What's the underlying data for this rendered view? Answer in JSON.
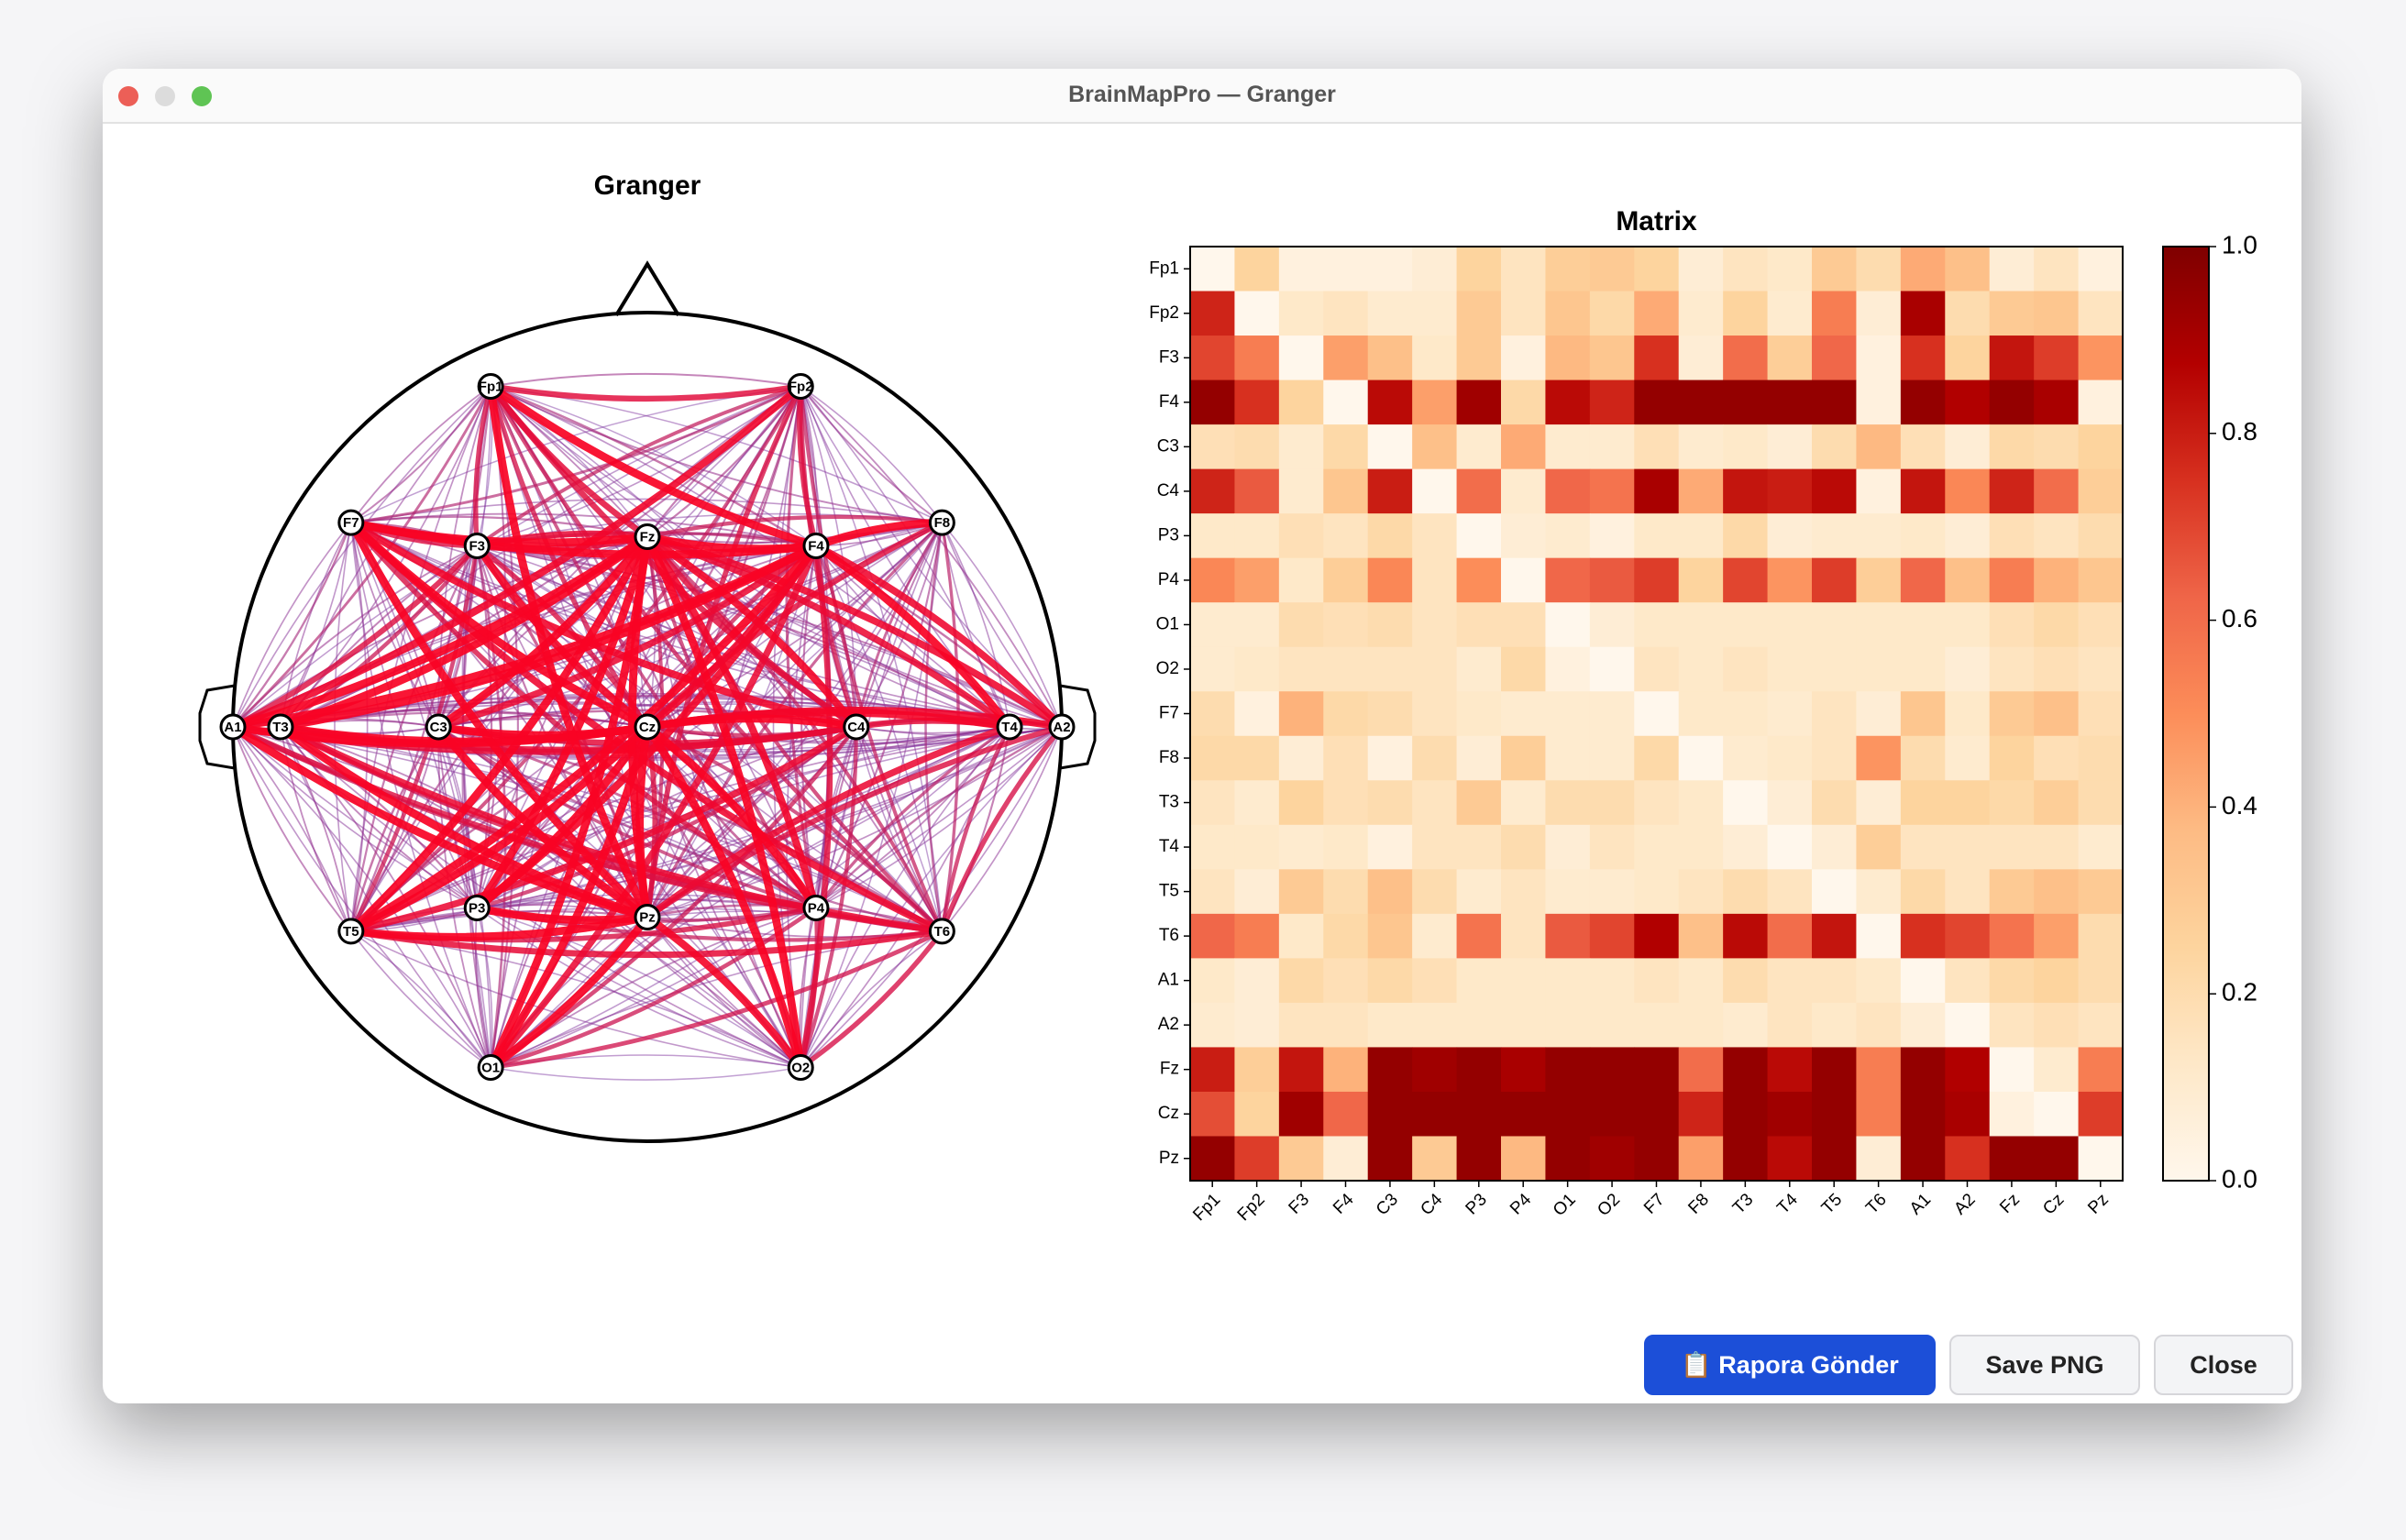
{
  "window_title": "BrainMapPro — Granger",
  "chart_data": [
    {
      "type": "network",
      "title": "Granger",
      "nodes": [
        "Fp1",
        "Fp2",
        "F3",
        "F4",
        "C3",
        "C4",
        "P3",
        "P4",
        "O1",
        "O2",
        "F7",
        "F8",
        "T3",
        "T4",
        "T5",
        "T6",
        "A1",
        "A2",
        "Fz",
        "Cz",
        "Pz"
      ]
    },
    {
      "type": "heatmap",
      "title": "Matrix",
      "colormap": "OrRd",
      "categories": [
        "Fp1",
        "Fp2",
        "F3",
        "F4",
        "C3",
        "C4",
        "P3",
        "P4",
        "O1",
        "O2",
        "F7",
        "F8",
        "T3",
        "T4",
        "T5",
        "T6",
        "A1",
        "A2",
        "Fz",
        "Cz",
        "Pz"
      ],
      "values": [
        [
          0,
          0.25,
          0.05,
          0.05,
          0.05,
          0.08,
          0.25,
          0.15,
          0.28,
          0.3,
          0.25,
          0.08,
          0.15,
          0.12,
          0.3,
          0.2,
          0.42,
          0.35,
          0.08,
          0.15,
          0.05
        ],
        [
          0.78,
          0,
          0.12,
          0.15,
          0.1,
          0.1,
          0.3,
          0.15,
          0.32,
          0.22,
          0.42,
          0.1,
          0.25,
          0.1,
          0.55,
          0.08,
          0.9,
          0.2,
          0.3,
          0.32,
          0.15
        ],
        [
          0.7,
          0.55,
          0,
          0.45,
          0.35,
          0.12,
          0.3,
          0.05,
          0.38,
          0.32,
          0.75,
          0.08,
          0.6,
          0.28,
          0.62,
          0.05,
          0.75,
          0.25,
          0.82,
          0.72,
          0.48
        ],
        [
          0.95,
          0.75,
          0.25,
          0,
          0.85,
          0.45,
          0.92,
          0.22,
          0.85,
          0.78,
          0.95,
          0.95,
          0.95,
          0.95,
          0.95,
          0.05,
          0.95,
          0.88,
          0.95,
          0.9,
          0.05
        ],
        [
          0.18,
          0.2,
          0.1,
          0.22,
          0,
          0.35,
          0.1,
          0.42,
          0.1,
          0.1,
          0.18,
          0.1,
          0.12,
          0.08,
          0.2,
          0.38,
          0.18,
          0.08,
          0.22,
          0.2,
          0.25
        ],
        [
          0.78,
          0.65,
          0.1,
          0.32,
          0.8,
          0,
          0.6,
          0.1,
          0.62,
          0.58,
          0.9,
          0.42,
          0.82,
          0.8,
          0.85,
          0.05,
          0.82,
          0.52,
          0.78,
          0.6,
          0.28
        ],
        [
          0.12,
          0.12,
          0.18,
          0.15,
          0.22,
          0.15,
          0,
          0.08,
          0.1,
          0.05,
          0.12,
          0.12,
          0.22,
          0.08,
          0.1,
          0.1,
          0.12,
          0.08,
          0.18,
          0.15,
          0.2
        ],
        [
          0.52,
          0.45,
          0.12,
          0.28,
          0.52,
          0.15,
          0.5,
          0,
          0.62,
          0.65,
          0.72,
          0.25,
          0.7,
          0.48,
          0.72,
          0.28,
          0.62,
          0.35,
          0.55,
          0.4,
          0.32
        ],
        [
          0.1,
          0.1,
          0.2,
          0.18,
          0.2,
          0.15,
          0.18,
          0.18,
          0,
          0.08,
          0.12,
          0.12,
          0.12,
          0.12,
          0.12,
          0.12,
          0.12,
          0.12,
          0.18,
          0.22,
          0.18
        ],
        [
          0.1,
          0.12,
          0.15,
          0.15,
          0.15,
          0.15,
          0.1,
          0.22,
          0.05,
          0,
          0.15,
          0.12,
          0.15,
          0.12,
          0.12,
          0.12,
          0.12,
          0.08,
          0.15,
          0.18,
          0.15
        ],
        [
          0.2,
          0.05,
          0.4,
          0.22,
          0.2,
          0.15,
          0.12,
          0.1,
          0.1,
          0.1,
          0,
          0.12,
          0.12,
          0.1,
          0.15,
          0.08,
          0.32,
          0.12,
          0.3,
          0.35,
          0.18
        ],
        [
          0.22,
          0.22,
          0.08,
          0.18,
          0.05,
          0.2,
          0.08,
          0.28,
          0.1,
          0.1,
          0.22,
          0,
          0.1,
          0.12,
          0.15,
          0.48,
          0.2,
          0.1,
          0.25,
          0.18,
          0.2
        ],
        [
          0.15,
          0.1,
          0.25,
          0.18,
          0.2,
          0.15,
          0.3,
          0.1,
          0.2,
          0.2,
          0.15,
          0.12,
          0,
          0.08,
          0.2,
          0.08,
          0.25,
          0.25,
          0.22,
          0.28,
          0.2
        ],
        [
          0.12,
          0.12,
          0.1,
          0.12,
          0.05,
          0.15,
          0.15,
          0.2,
          0.08,
          0.15,
          0.12,
          0.12,
          0.08,
          0,
          0.08,
          0.28,
          0.15,
          0.15,
          0.15,
          0.15,
          0.1
        ],
        [
          0.15,
          0.08,
          0.3,
          0.2,
          0.35,
          0.2,
          0.1,
          0.15,
          0.1,
          0.1,
          0.12,
          0.15,
          0.2,
          0.15,
          0,
          0.1,
          0.22,
          0.15,
          0.3,
          0.35,
          0.3
        ],
        [
          0.62,
          0.55,
          0.12,
          0.22,
          0.32,
          0.1,
          0.58,
          0.15,
          0.65,
          0.7,
          0.88,
          0.35,
          0.85,
          0.6,
          0.82,
          0,
          0.75,
          0.7,
          0.58,
          0.45,
          0.2
        ],
        [
          0.12,
          0.08,
          0.22,
          0.18,
          0.22,
          0.18,
          0.12,
          0.12,
          0.12,
          0.12,
          0.15,
          0.12,
          0.2,
          0.15,
          0.15,
          0.12,
          0,
          0.15,
          0.22,
          0.25,
          0.2
        ],
        [
          0.1,
          0.08,
          0.15,
          0.15,
          0.12,
          0.12,
          0.12,
          0.12,
          0.12,
          0.12,
          0.12,
          0.12,
          0.1,
          0.15,
          0.12,
          0.15,
          0.08,
          0,
          0.15,
          0.18,
          0.15
        ],
        [
          0.8,
          0.28,
          0.82,
          0.4,
          0.95,
          0.92,
          0.95,
          0.9,
          0.95,
          0.95,
          0.95,
          0.6,
          0.95,
          0.85,
          0.95,
          0.55,
          0.95,
          0.88,
          0,
          0.1,
          0.55
        ],
        [
          0.68,
          0.25,
          0.92,
          0.62,
          0.95,
          0.95,
          0.95,
          0.95,
          0.95,
          0.95,
          0.95,
          0.78,
          0.95,
          0.92,
          0.95,
          0.55,
          0.95,
          0.9,
          0.05,
          0,
          0.72
        ],
        [
          0.95,
          0.72,
          0.3,
          0.08,
          0.95,
          0.3,
          0.95,
          0.38,
          0.95,
          0.92,
          0.95,
          0.45,
          0.95,
          0.85,
          0.95,
          0.08,
          0.95,
          0.75,
          0.95,
          0.95,
          0
        ]
      ],
      "vlim": [
        0,
        1
      ],
      "cticks": [
        {
          "value": 0,
          "label": "0.0"
        },
        0.2,
        0.4,
        0.6,
        0.8,
        {
          "value": 1,
          "label": "1.0"
        }
      ]
    }
  ],
  "buttons": [
    "📋 Rapora Gönder",
    "Save PNG",
    "Close"
  ]
}
